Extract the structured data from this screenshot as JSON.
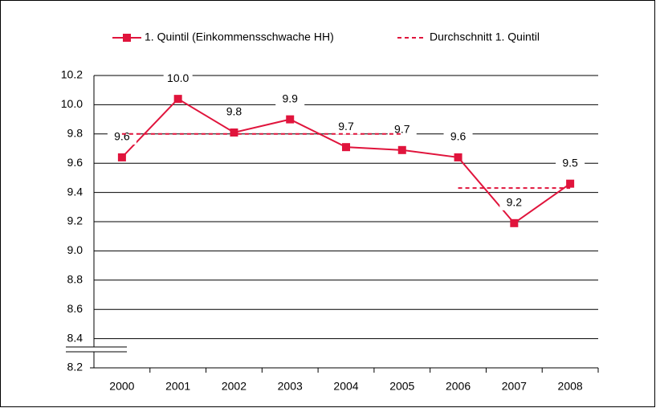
{
  "chart_data": {
    "type": "line",
    "categories": [
      "2000",
      "2001",
      "2002",
      "2003",
      "2004",
      "2005",
      "2006",
      "2007",
      "2008"
    ],
    "series": [
      {
        "name": "1. Quintil (Einkommensschwache HH)",
        "color": "#e0143c",
        "style": "solid",
        "marker": "square",
        "values": [
          9.64,
          10.04,
          9.81,
          9.9,
          9.71,
          9.69,
          9.64,
          9.19,
          9.46
        ],
        "value_labels": [
          "9.6",
          "10.0",
          "9.8",
          "9.9",
          "9.7",
          "9.7",
          "9.6",
          "9.2",
          "9.5"
        ]
      },
      {
        "name": "Durchschnitt 1. Quintil",
        "color": "#e0143c",
        "style": "dashed",
        "values": [
          9.8,
          9.8,
          9.8,
          9.8,
          9.8,
          9.8,
          9.43,
          9.43,
          9.43
        ]
      }
    ],
    "ylim": [
      8.2,
      10.2
    ],
    "yticks": [
      {
        "value": 8.2,
        "label": "8.2"
      },
      {
        "value": 8.4,
        "label": "8.4"
      },
      {
        "value": 8.6,
        "label": "8.6"
      },
      {
        "value": 8.8,
        "label": "8.8"
      },
      {
        "value": 9.0,
        "label": "9.0"
      },
      {
        "value": 9.2,
        "label": "9.2"
      },
      {
        "value": 9.4,
        "label": "9.4"
      },
      {
        "value": 9.6,
        "label": "9.6"
      },
      {
        "value": 9.8,
        "label": "9.8"
      },
      {
        "value": 10.0,
        "label": "10.0"
      },
      {
        "value": 10.2,
        "label": "10.2"
      }
    ],
    "grid": true,
    "legend": "top"
  }
}
